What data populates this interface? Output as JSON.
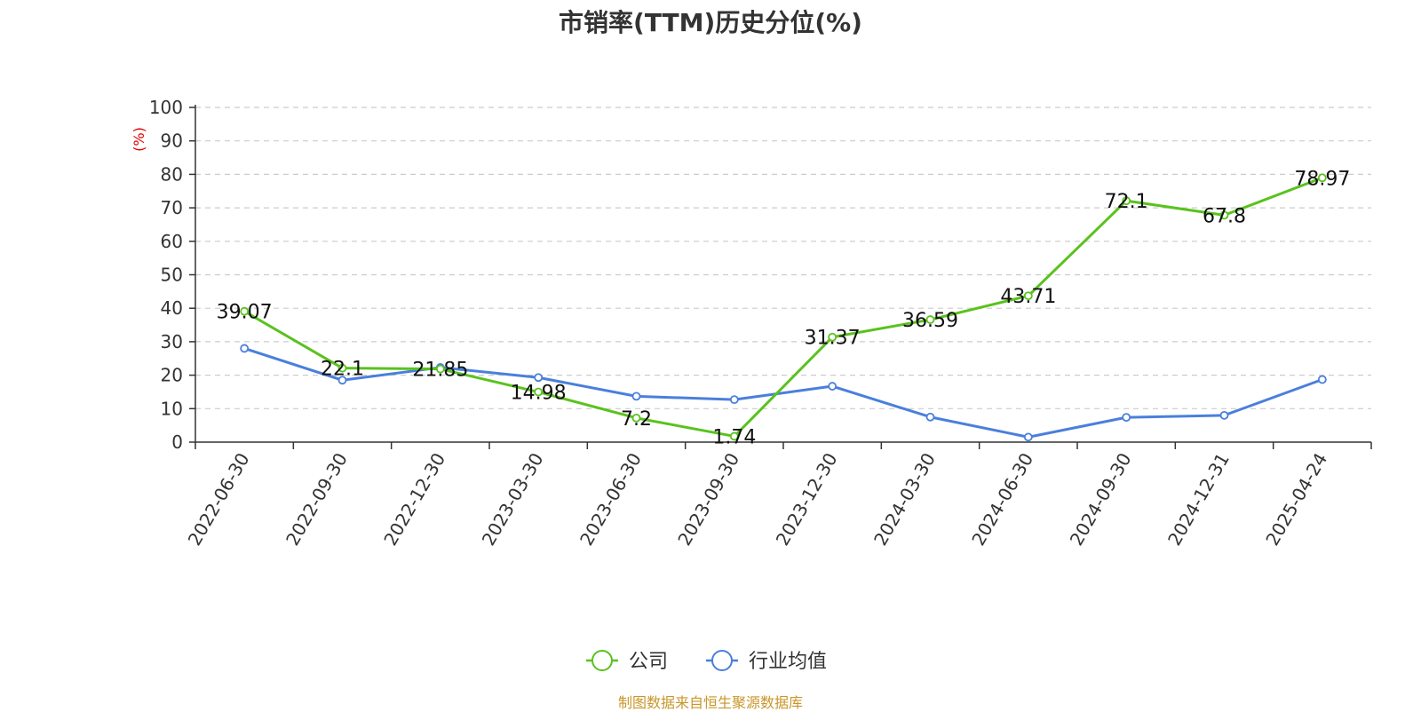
{
  "chart_data": {
    "type": "line",
    "title": "市销率(TTM)历史分位(%)",
    "ylabel": "(%)",
    "ylim": [
      0,
      100
    ],
    "yticks": [
      0,
      10,
      20,
      30,
      40,
      50,
      60,
      70,
      80,
      90,
      100
    ],
    "categories": [
      "2022-06-30",
      "2022-09-30",
      "2022-12-30",
      "2023-03-30",
      "2023-06-30",
      "2023-09-30",
      "2023-12-30",
      "2024-03-30",
      "2024-06-30",
      "2024-09-30",
      "2024-12-31",
      "2025-04-24"
    ],
    "grid": true,
    "legend_position": "bottom-center",
    "series": [
      {
        "name": "公司",
        "color": "#5ac21e",
        "values": [
          39.07,
          22.1,
          21.85,
          14.98,
          7.2,
          1.74,
          31.37,
          36.59,
          43.71,
          72.1,
          67.8,
          78.97
        ],
        "labels": [
          "39.07",
          "22.1",
          "21.85",
          "14.98",
          "7.2",
          "1.74",
          "31.37",
          "36.59",
          "43.71",
          "72.1",
          "67.8",
          "78.97"
        ]
      },
      {
        "name": "行业均值",
        "color": "#4a7fdc",
        "values": [
          28,
          18.5,
          22.3,
          19.3,
          13.7,
          12.7,
          16.7,
          7.5,
          1.5,
          7.4,
          8,
          18.7
        ]
      }
    ]
  },
  "source_note": "制图数据来自恒生聚源数据库",
  "source_note_color": "#c8962a",
  "ylabel_color": "#e00000"
}
